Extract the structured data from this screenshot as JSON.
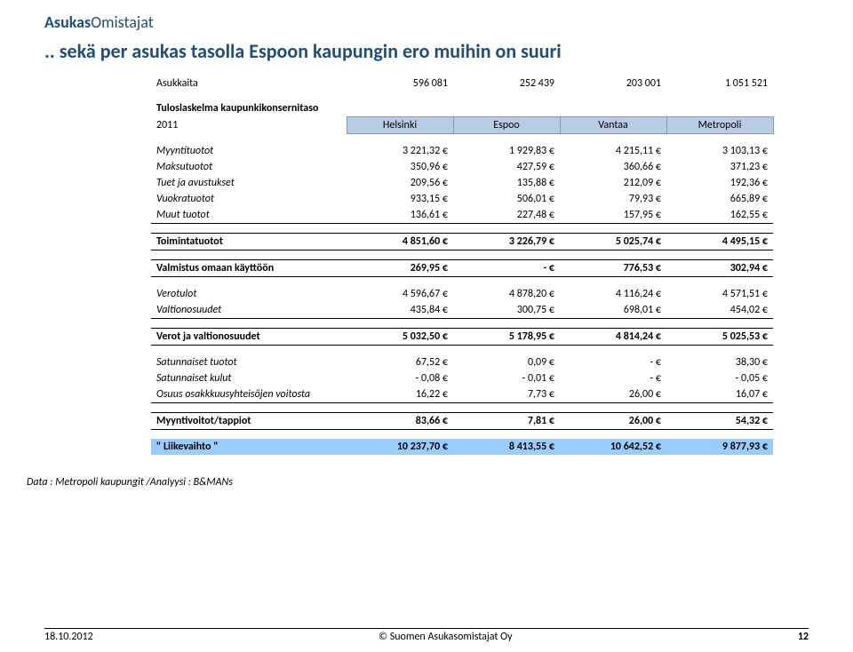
{
  "brand": {
    "part1": "Asukas",
    "part2": "Omistajat"
  },
  "title": ".. sekä per asukas tasolla Espoon kaupungin ero muihin on suuri",
  "columns": {
    "c1": "Helsinki",
    "c2": "Espoo",
    "c3": "Vantaa",
    "c4": "Metropoli"
  },
  "asukkaita": {
    "label": "Asukkaita",
    "c1": "596 081",
    "c2": "252 439",
    "c3": "203 001",
    "c4": "1 051 521"
  },
  "tuloslaskelma_label": "Tuloslaskelma kaupunkikonsernitaso",
  "year": "2011",
  "rows": {
    "myyntituotot": {
      "label": "Myyntituotot",
      "c1": "3 221,32 €",
      "c2": "1 929,83 €",
      "c3": "4 215,11 €",
      "c4": "3 103,13 €"
    },
    "maksutuotot": {
      "label": "Maksutuotot",
      "c1": "350,96 €",
      "c2": "427,59 €",
      "c3": "360,66 €",
      "c4": "371,23 €"
    },
    "tuet": {
      "label": "Tuet ja avustukset",
      "c1": "209,56 €",
      "c2": "135,88 €",
      "c3": "212,09 €",
      "c4": "192,36 €"
    },
    "vuokratuotot": {
      "label": "Vuokratuotot",
      "c1": "933,15 €",
      "c2": "506,01 €",
      "c3": "79,93 €",
      "c4": "665,89 €"
    },
    "muut": {
      "label": "Muut tuotot",
      "c1": "136,61 €",
      "c2": "227,48 €",
      "c3": "157,95 €",
      "c4": "162,55 €"
    },
    "toimintatuotot": {
      "label": "Toimintatuotot",
      "c1": "4 851,60 €",
      "c2": "3 226,79 €",
      "c3": "5 025,74 €",
      "c4": "4 495,15 €"
    },
    "valmistus": {
      "label": "Valmistus omaan käyttöön",
      "c1": "269,95 €",
      "c2": "-   €",
      "c3": "776,53 €",
      "c4": "302,94 €"
    },
    "verotulot": {
      "label": "Verotulot",
      "c1": "4 596,67 €",
      "c2": "4 878,20 €",
      "c3": "4 116,24 €",
      "c4": "4 571,51 €"
    },
    "valtionosuudet": {
      "label": "Valtionosuudet",
      "c1": "435,84 €",
      "c2": "300,75 €",
      "c3": "698,01 €",
      "c4": "454,02 €"
    },
    "verot_valt": {
      "label": "Verot ja valtionosuudet",
      "c1": "5 032,50 €",
      "c2": "5 178,95 €",
      "c3": "4 814,24 €",
      "c4": "5 025,53 €"
    },
    "sat_tuotot": {
      "label": "Satunnaiset tuotot",
      "c1": "67,52 €",
      "c2": "0,09 €",
      "c3": "-   €",
      "c4": "38,30 €"
    },
    "sat_kulut": {
      "label": "Satunnaiset kulut",
      "c1": "-         0,08 €",
      "c2": "-         0,01 €",
      "c3": "-   €",
      "c4": "-         0,05 €"
    },
    "osuus": {
      "label": "Osuus osakkkuusyhteisöjen voitosta",
      "c1": "16,22 €",
      "c2": "7,73 €",
      "c3": "26,00 €",
      "c4": "16,07 €"
    },
    "myyntivoitot": {
      "label": "Myyntivoitot/tappiot",
      "c1": "83,66 €",
      "c2": "7,81 €",
      "c3": "26,00 €",
      "c4": "54,32 €"
    },
    "liikevaihto": {
      "label": "\" Liikevaihto \"",
      "c1": "10 237,70 €",
      "c2": "8 413,55 €",
      "c3": "10 642,52 €",
      "c4": "9 877,93 €"
    }
  },
  "datanote": "Data : Metropoli kaupungit /Analyysi : B&MANs",
  "footer": {
    "date": "18.10.2012",
    "center": "© Suomen Asukasomistajat Oy",
    "page": "12"
  }
}
